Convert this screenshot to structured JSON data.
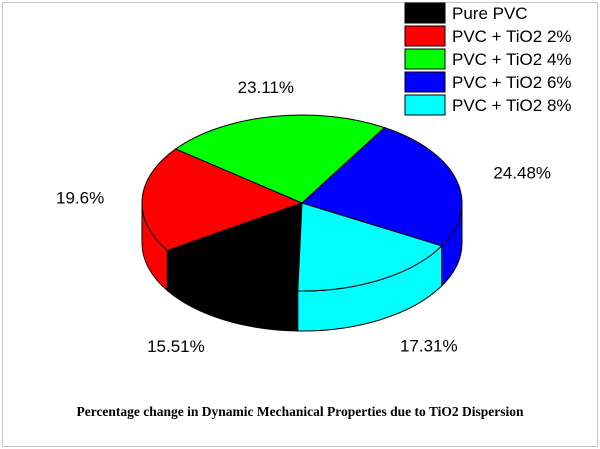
{
  "chart_data": {
    "type": "pie",
    "style": "3d",
    "categories": [
      "Pure PVC",
      "PVC + TiO2 2%",
      "PVC + TiO2 4%",
      "PVC + TiO2 6%",
      "PVC + TiO2 8%"
    ],
    "values": [
      15.51,
      19.6,
      23.11,
      24.48,
      17.31
    ],
    "data_labels": [
      "15.51%",
      "19.6%",
      "23.11%",
      "24.48%",
      "17.31%"
    ],
    "colors": [
      "#000000",
      "#ff0000",
      "#00ff00",
      "#0000ff",
      "#00ffff"
    ],
    "legend_position": "top-right",
    "caption": "Percentage change in Dynamic Mechanical Properties due to TiO2 Dispersion"
  }
}
